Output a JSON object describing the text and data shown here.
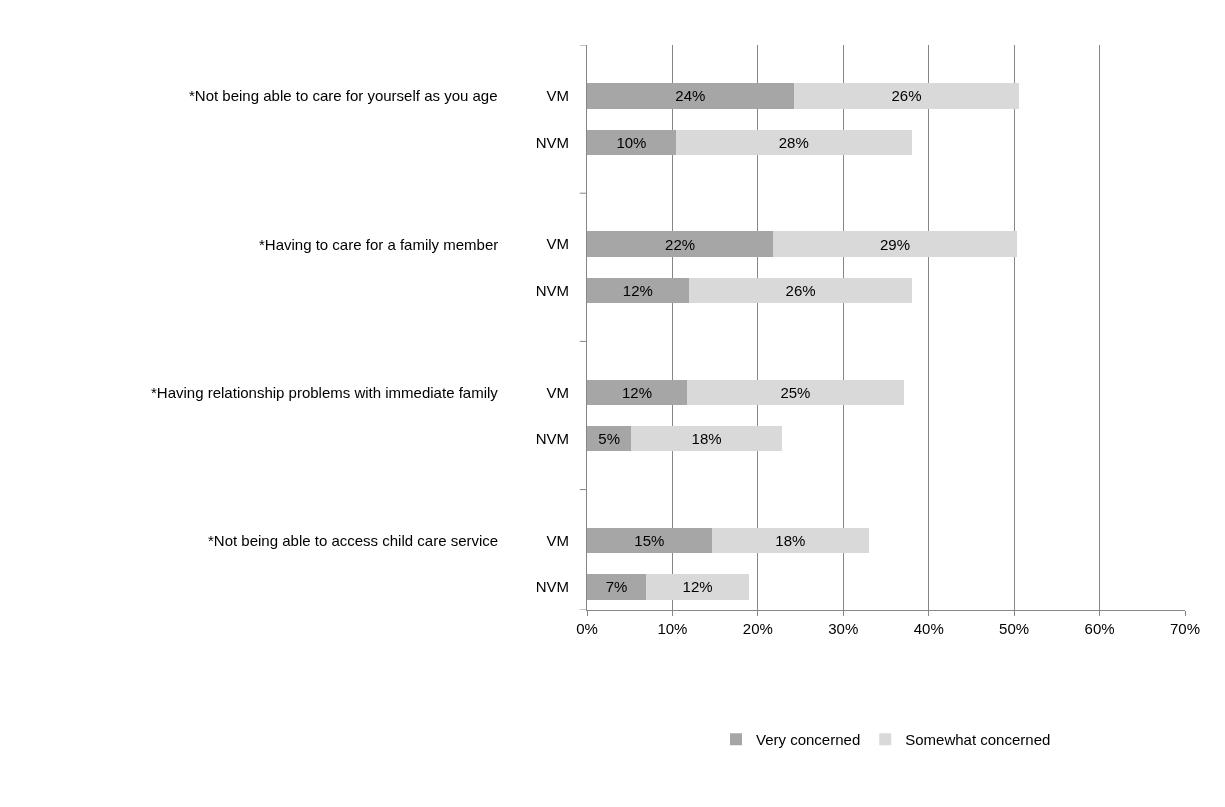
{
  "chart_data": {
    "type": "bar",
    "orientation": "horizontal",
    "stacked": true,
    "categories": [
      "VM",
      "NVM",
      "VM",
      "NVM",
      "VM",
      "NVM",
      "VM",
      "NVM"
    ],
    "series": [
      {
        "name": "Very concerned",
        "color": "#a6a6a6",
        "values": [
          24.2,
          10.4,
          21.8,
          11.9,
          11.7,
          5.2,
          14.6,
          6.9
        ],
        "value_labels": [
          "24%",
          "10%",
          "22%",
          "12%",
          "12%",
          "5%",
          "15%",
          "7%"
        ]
      },
      {
        "name": "Somewhat concerned",
        "color": "#d9d9d9",
        "values": [
          26.4,
          27.6,
          28.5,
          26.2,
          25.4,
          17.6,
          18.4,
          12.1
        ],
        "value_labels": [
          "26%",
          "28%",
          "29%",
          "26%",
          "25%",
          "18%",
          "18%",
          "12%"
        ]
      }
    ],
    "annotations": [
      "*Not being able to care for yourself as you age",
      "*Having to care for a family member",
      "*Having relationship problems with immediate family",
      "*Not being able to access child care service"
    ],
    "xlim": [
      0,
      70
    ],
    "xticks": [
      {
        "value": 0,
        "label": "0%"
      },
      {
        "value": 10,
        "label": "10%"
      },
      {
        "value": 20,
        "label": "20%"
      },
      {
        "value": 30,
        "label": "30%"
      },
      {
        "value": 40,
        "label": "40%"
      },
      {
        "value": 50,
        "label": "50%"
      },
      {
        "value": 60,
        "label": "60%"
      },
      {
        "value": 70,
        "label": "70%"
      }
    ],
    "grid": "x",
    "legend": "bottom"
  }
}
